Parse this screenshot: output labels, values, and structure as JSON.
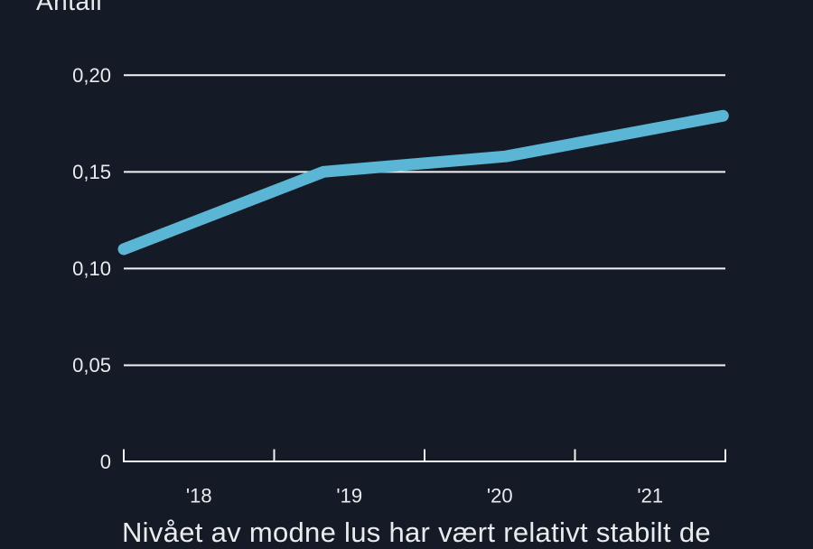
{
  "page": {
    "caption": "Nivået av modne lus har vært relativt stabilt de",
    "colors": {
      "background": "#141b27",
      "text": "#e9ebee",
      "grid": "#f2f4f5",
      "axis": "#f2f4f5"
    }
  },
  "chart_data": {
    "type": "line",
    "title": "Antall",
    "ylabel": "Antall",
    "caption_visible": "Nivået av modne lus har vært relativt stabilt de",
    "grid": true,
    "legend": false,
    "ylim": [
      0,
      0.21
    ],
    "y_ticks": [
      {
        "label": "0,20",
        "value": 0.2
      },
      {
        "label": "0,15",
        "value": 0.15
      },
      {
        "label": "0,10",
        "value": 0.1
      },
      {
        "label": "0,05",
        "value": 0.05
      },
      {
        "label": "0",
        "value": 0
      }
    ],
    "x_tick_labels": [
      "'18",
      "'19",
      "'20",
      "'21"
    ],
    "series": [
      {
        "name": "antall-modne-lus",
        "color": "#5bb6d6",
        "points": [
          {
            "x_frac": 0.0,
            "value": 0.11
          },
          {
            "x_frac": 0.332,
            "value": 0.15
          },
          {
            "x_frac": 0.635,
            "value": 0.158
          },
          {
            "x_frac": 0.996,
            "value": 0.179
          }
        ]
      }
    ]
  }
}
